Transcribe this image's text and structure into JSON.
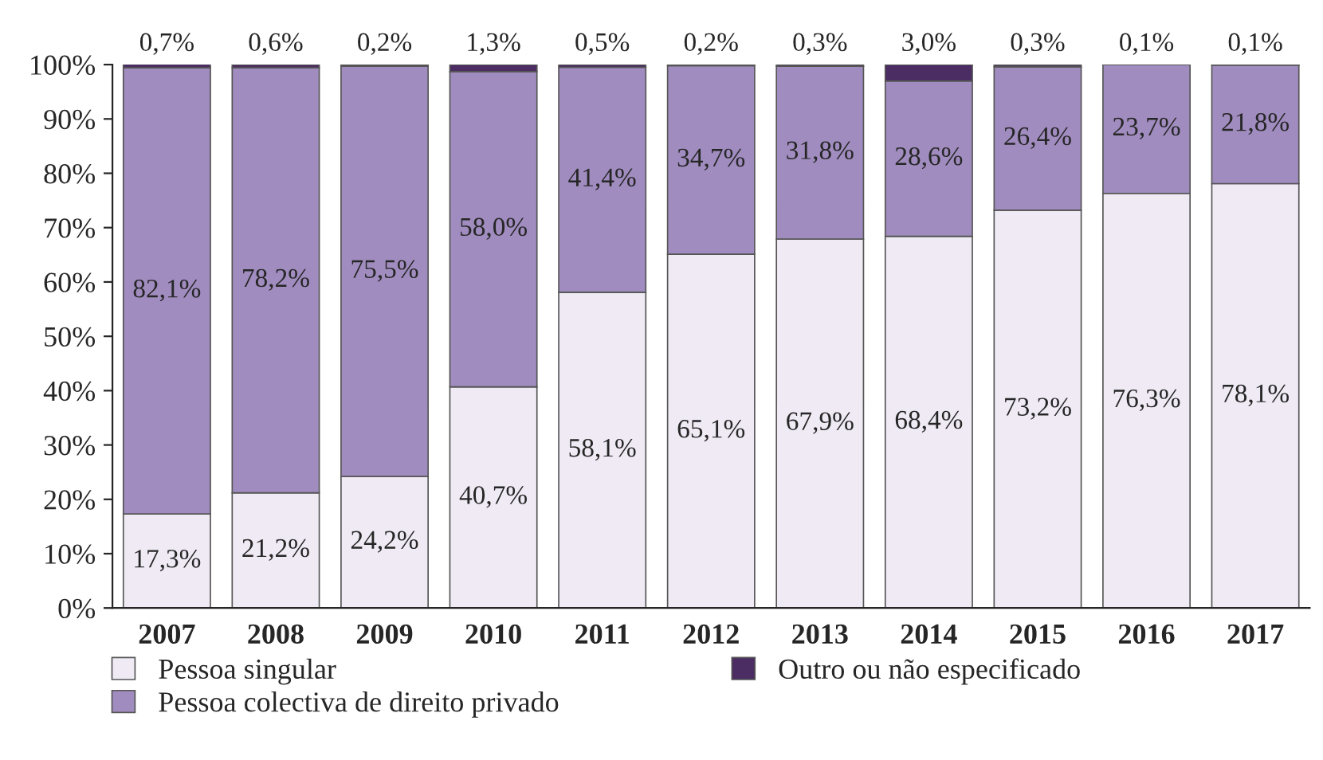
{
  "chart_data": {
    "type": "bar",
    "stacked": true,
    "categories": [
      "2007",
      "2008",
      "2009",
      "2010",
      "2011",
      "2012",
      "2013",
      "2014",
      "2015",
      "2016",
      "2017"
    ],
    "series": [
      {
        "name": "Pessoa singular",
        "color": "#efeaf4",
        "values": [
          17.3,
          21.2,
          24.2,
          40.7,
          58.1,
          65.1,
          67.9,
          68.4,
          73.2,
          76.3,
          78.1
        ],
        "value_labels": [
          "17,3%",
          "21,2%",
          "24,2%",
          "40,7%",
          "58,1%",
          "65,1%",
          "67,9%",
          "68,4%",
          "73,2%",
          "76,3%",
          "78,1%"
        ]
      },
      {
        "name": "Pessoa colectiva de direito privado",
        "color": "#a08cbf",
        "values": [
          82.1,
          78.2,
          75.5,
          58.0,
          41.4,
          34.7,
          31.8,
          28.6,
          26.4,
          23.7,
          21.8
        ],
        "value_labels": [
          "82,1%",
          "78,2%",
          "75,5%",
          "58,0%",
          "41,4%",
          "34,7%",
          "31,8%",
          "28,6%",
          "26,4%",
          "23,7%",
          "21,8%"
        ]
      },
      {
        "name": "Outro ou não especificado",
        "color": "#4b2c63",
        "values": [
          0.7,
          0.6,
          0.2,
          1.3,
          0.5,
          0.2,
          0.3,
          3.0,
          0.3,
          0.1,
          0.1
        ],
        "value_labels": [
          "0,7%",
          "0,6%",
          "0,2%",
          "1,3%",
          "0,5%",
          "0,2%",
          "0,3%",
          "3,0%",
          "0,3%",
          "0,1%",
          "0,1%"
        ]
      }
    ],
    "ylim": [
      0,
      100
    ],
    "yticks": [
      {
        "value": 0,
        "label": "0%"
      },
      {
        "value": 10,
        "label": "10%"
      },
      {
        "value": 20,
        "label": "20%"
      },
      {
        "value": 30,
        "label": "30%"
      },
      {
        "value": 40,
        "label": "40%"
      },
      {
        "value": 50,
        "label": "50%"
      },
      {
        "value": 60,
        "label": "60%"
      },
      {
        "value": 70,
        "label": "70%"
      },
      {
        "value": 80,
        "label": "80%"
      },
      {
        "value": 90,
        "label": "90%"
      },
      {
        "value": 100,
        "label": "100%"
      }
    ],
    "grid": false,
    "legend": "bottom"
  }
}
